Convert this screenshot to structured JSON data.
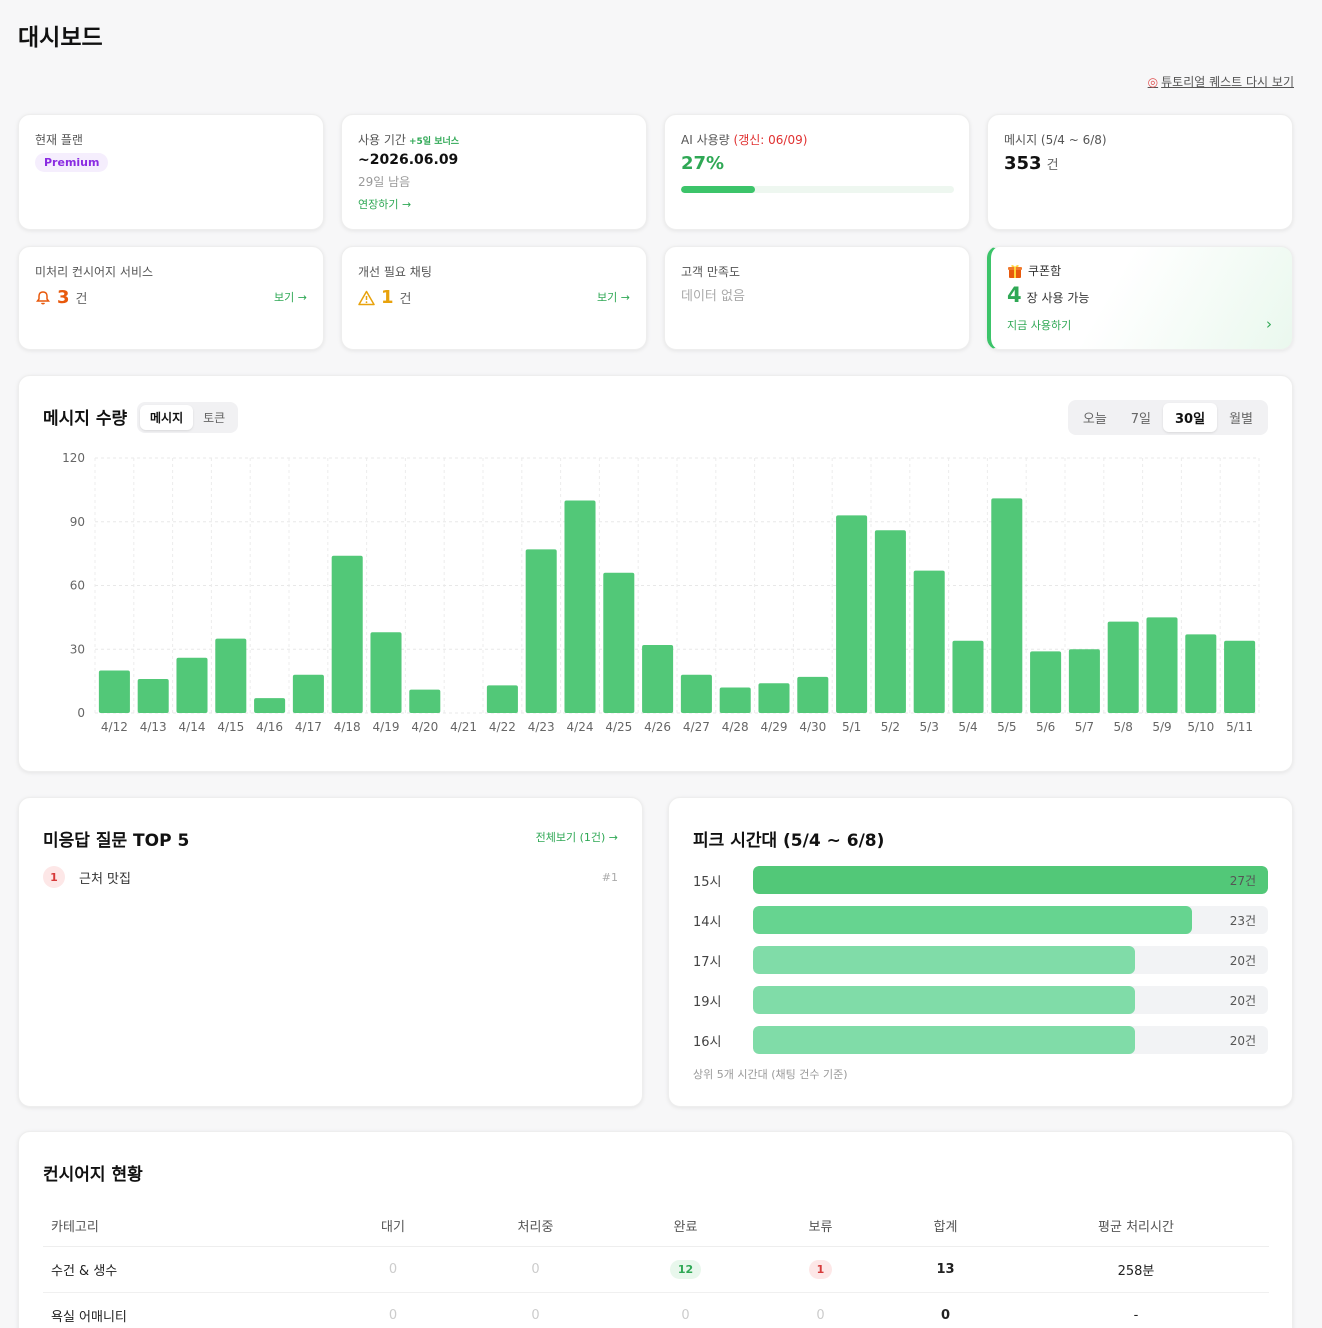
{
  "page": {
    "title": "대시보드",
    "tutorial_link": "튜토리얼 퀘스트 다시 보기"
  },
  "stats": {
    "plan": {
      "label": "현재 플랜",
      "value": "Premium"
    },
    "period": {
      "label": "사용 기간",
      "bonus": "+5일 보너스",
      "date": "~2026.06.09",
      "remaining": "29일 남음",
      "action": "연장하기 →"
    },
    "ai_usage": {
      "label": "AI 사용량",
      "renew": "(갱신: 06/09)",
      "percent_text": "27%",
      "percent": 27
    },
    "messages": {
      "label": "메시지 (5/4 ~ 6/8)",
      "count": "353",
      "unit": "건"
    },
    "concierge": {
      "label": "미처리 컨시어지 서비스",
      "count": "3",
      "unit": "건",
      "link": "보기 →"
    },
    "chats": {
      "label": "개선 필요 채팅",
      "count": "1",
      "unit": "건",
      "link": "보기 →"
    },
    "satisfaction": {
      "label": "고객 만족도",
      "empty": "데이터 없음"
    },
    "coupon": {
      "label": "쿠폰함",
      "count": "4",
      "unit": "장 사용 가능",
      "action": "지금 사용하기"
    }
  },
  "message_chart": {
    "title": "메시지 수량",
    "toggle": [
      "메시지",
      "토큰"
    ],
    "toggle_active": 0,
    "ranges": [
      "오늘",
      "7일",
      "30일",
      "월별"
    ],
    "range_active": 2
  },
  "chart_data": {
    "type": "bar",
    "categories": [
      "4/12",
      "4/13",
      "4/14",
      "4/15",
      "4/16",
      "4/17",
      "4/18",
      "4/19",
      "4/20",
      "4/21",
      "4/22",
      "4/23",
      "4/24",
      "4/25",
      "4/26",
      "4/27",
      "4/28",
      "4/29",
      "4/30",
      "5/1",
      "5/2",
      "5/3",
      "5/4",
      "5/5",
      "5/6",
      "5/7",
      "5/8",
      "5/9",
      "5/10",
      "5/11"
    ],
    "values": [
      20,
      16,
      26,
      35,
      7,
      18,
      74,
      38,
      11,
      0,
      13,
      77,
      100,
      66,
      32,
      18,
      12,
      14,
      17,
      93,
      86,
      67,
      34,
      101,
      29,
      30,
      43,
      45,
      37,
      34
    ],
    "yticks": [
      0,
      30,
      60,
      90,
      120
    ],
    "ylim": [
      0,
      120
    ],
    "color": "#52c878",
    "grid": true
  },
  "questions": {
    "title": "미응답 질문 TOP 5",
    "view_all": "전체보기 (1건) →",
    "items": [
      {
        "rank": "1",
        "text": "근처 맛집",
        "tag": "#1"
      }
    ]
  },
  "peak": {
    "title": "피크 시간대 (5/4 ~ 6/8)",
    "items": [
      {
        "label": "15시",
        "value": "27건",
        "ratio": 1.0,
        "color": "#52c878"
      },
      {
        "label": "14시",
        "value": "23건",
        "ratio": 0.852,
        "color": "#66d490"
      },
      {
        "label": "17시",
        "value": "20건",
        "ratio": 0.741,
        "color": "#80dca8"
      },
      {
        "label": "19시",
        "value": "20건",
        "ratio": 0.741,
        "color": "#80dca8"
      },
      {
        "label": "16시",
        "value": "20건",
        "ratio": 0.741,
        "color": "#80dca8"
      }
    ],
    "note": "상위 5개 시간대 (채팅 건수 기준)"
  },
  "concierge_table": {
    "title": "컨시어지 현황",
    "headers": [
      "카테고리",
      "대기",
      "처리중",
      "완료",
      "보류",
      "합계",
      "평균 처리시간"
    ],
    "rows": [
      {
        "category": "수건 & 생수",
        "waiting": "0",
        "processing": "0",
        "done": "12",
        "hold": "1",
        "total": "13",
        "avg": "258분"
      },
      {
        "category": "욕실 어매니티",
        "waiting": "0",
        "processing": "0",
        "done": "0",
        "hold": "0",
        "total": "0",
        "avg": "-"
      }
    ]
  }
}
